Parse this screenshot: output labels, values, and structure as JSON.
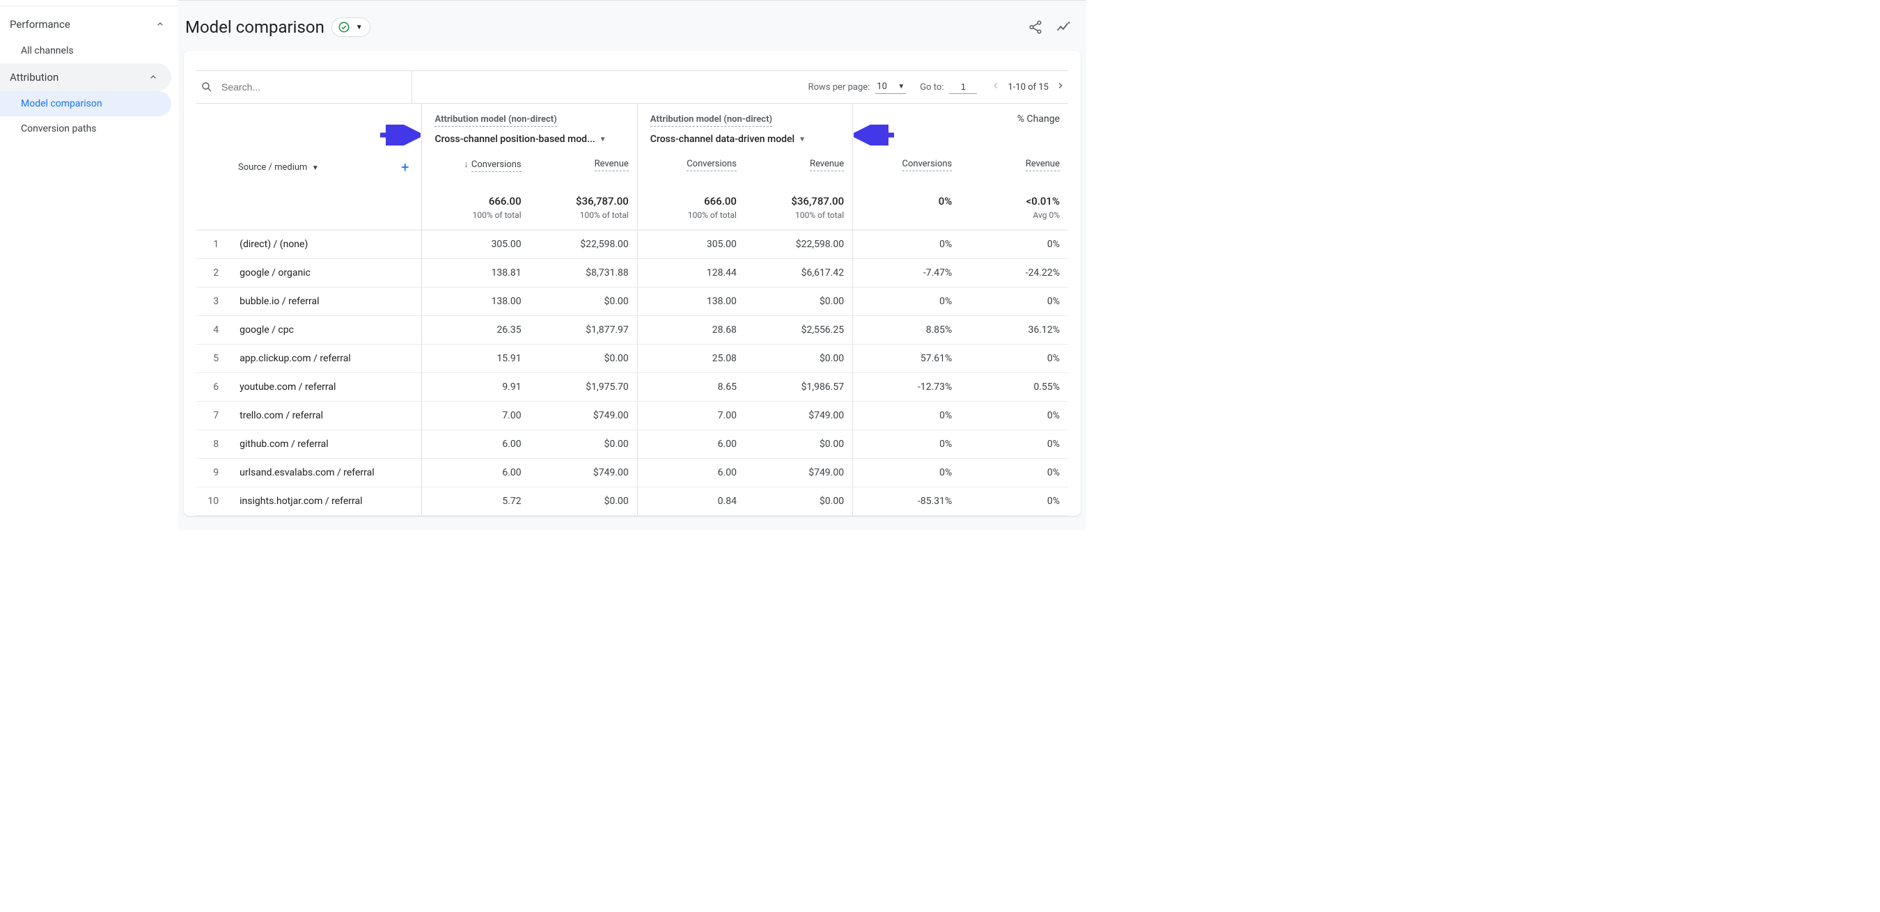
{
  "sidebar": {
    "sections": [
      {
        "label": "Performance",
        "expanded": true,
        "active": false,
        "items": [
          {
            "label": "All channels",
            "selected": false
          }
        ]
      },
      {
        "label": "Attribution",
        "expanded": true,
        "active": true,
        "items": [
          {
            "label": "Model comparison",
            "selected": true
          },
          {
            "label": "Conversion paths",
            "selected": false
          }
        ]
      }
    ]
  },
  "header": {
    "title": "Model comparison",
    "status_ok": true
  },
  "toolbar": {
    "search_placeholder": "Search...",
    "rows_per_page_label": "Rows per page:",
    "rows_per_page_value": "10",
    "goto_label": "Go to:",
    "goto_value": "1",
    "page_info": "1-10 of 15"
  },
  "models": {
    "label": "Attribution model (non-direct)",
    "left": "Cross-channel position-based mod...",
    "right": "Cross-channel data-driven model",
    "change_label": "% Change"
  },
  "columns": {
    "dimension": "Source / medium",
    "conversions": "Conversions",
    "revenue": "Revenue"
  },
  "totals": {
    "conv1": "666.00",
    "conv1_sub": "100% of total",
    "rev1": "$36,787.00",
    "rev1_sub": "100% of total",
    "conv2": "666.00",
    "conv2_sub": "100% of total",
    "rev2": "$36,787.00",
    "rev2_sub": "100% of total",
    "dconv": "0%",
    "drev": "<0.01%",
    "drev_sub": "Avg 0%"
  },
  "rows": [
    {
      "i": "1",
      "src": "(direct) / (none)",
      "c1": "305.00",
      "r1": "$22,598.00",
      "c2": "305.00",
      "r2": "$22,598.00",
      "dc": "0%",
      "dr": "0%"
    },
    {
      "i": "2",
      "src": "google / organic",
      "c1": "138.81",
      "r1": "$8,731.88",
      "c2": "128.44",
      "r2": "$6,617.42",
      "dc": "-7.47%",
      "dr": "-24.22%"
    },
    {
      "i": "3",
      "src": "bubble.io / referral",
      "c1": "138.00",
      "r1": "$0.00",
      "c2": "138.00",
      "r2": "$0.00",
      "dc": "0%",
      "dr": "0%"
    },
    {
      "i": "4",
      "src": "google / cpc",
      "c1": "26.35",
      "r1": "$1,877.97",
      "c2": "28.68",
      "r2": "$2,556.25",
      "dc": "8.85%",
      "dr": "36.12%"
    },
    {
      "i": "5",
      "src": "app.clickup.com / referral",
      "c1": "15.91",
      "r1": "$0.00",
      "c2": "25.08",
      "r2": "$0.00",
      "dc": "57.61%",
      "dr": "0%"
    },
    {
      "i": "6",
      "src": "youtube.com / referral",
      "c1": "9.91",
      "r1": "$1,975.70",
      "c2": "8.65",
      "r2": "$1,986.57",
      "dc": "-12.73%",
      "dr": "0.55%"
    },
    {
      "i": "7",
      "src": "trello.com / referral",
      "c1": "7.00",
      "r1": "$749.00",
      "c2": "7.00",
      "r2": "$749.00",
      "dc": "0%",
      "dr": "0%"
    },
    {
      "i": "8",
      "src": "github.com / referral",
      "c1": "6.00",
      "r1": "$0.00",
      "c2": "6.00",
      "r2": "$0.00",
      "dc": "0%",
      "dr": "0%"
    },
    {
      "i": "9",
      "src": "urlsand.esvalabs.com / referral",
      "c1": "6.00",
      "r1": "$749.00",
      "c2": "6.00",
      "r2": "$749.00",
      "dc": "0%",
      "dr": "0%"
    },
    {
      "i": "10",
      "src": "insights.hotjar.com / referral",
      "c1": "5.72",
      "r1": "$0.00",
      "c2": "0.84",
      "r2": "$0.00",
      "dc": "-85.31%",
      "dr": "0%"
    }
  ],
  "annotation_color": "#4338e8"
}
